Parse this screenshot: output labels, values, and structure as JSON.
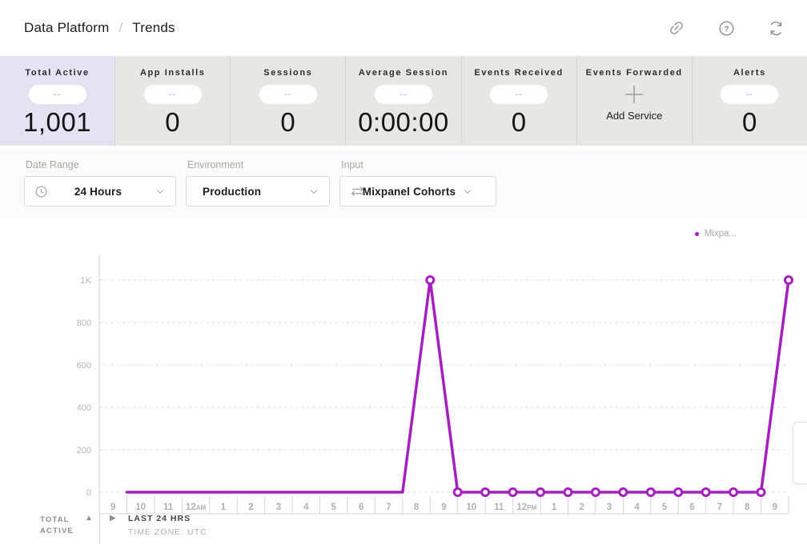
{
  "header": {
    "breadcrumb": {
      "section": "Data Platform",
      "separator": "/",
      "page": "Trends"
    },
    "help_glyph": "?",
    "icons": [
      "link-icon",
      "help-icon",
      "refresh-icon"
    ]
  },
  "metrics": {
    "cards": [
      {
        "label": "Total Active",
        "pill": "--",
        "value": "1,001",
        "selected": true
      },
      {
        "label": "App Installs",
        "pill": "--",
        "value": "0"
      },
      {
        "label": "Sessions",
        "pill": "--",
        "value": "0"
      },
      {
        "label": "Average Session",
        "pill": "--",
        "value": "0:00:00"
      },
      {
        "label": "Events Received",
        "pill": "--",
        "value": "0"
      },
      {
        "label": "Events Forwarded",
        "action": "Add Service",
        "icon": "plus-icon"
      },
      {
        "label": "Alerts",
        "pill": "--",
        "value": "0"
      }
    ]
  },
  "filters": {
    "date_range": {
      "label": "Date Range",
      "value": "24 Hours",
      "icon": "clock-icon"
    },
    "environment": {
      "label": "Environment",
      "value": "Production"
    },
    "input": {
      "label": "Input",
      "value": "Mixpanel Cohorts",
      "icon": "swap-arrows-icon"
    }
  },
  "chart_data": {
    "type": "line",
    "legend": [
      {
        "label": "Mixpa...",
        "color": "#a51fbf"
      }
    ],
    "x_labels": [
      "9",
      "10",
      "11",
      "12 AM",
      "1",
      "2",
      "3",
      "4",
      "5",
      "6",
      "7",
      "8",
      "9",
      "10",
      "11",
      "12 PM",
      "1",
      "2",
      "3",
      "4",
      "5",
      "6",
      "7",
      "8",
      "9"
    ],
    "values": [
      0,
      0,
      0,
      0,
      0,
      0,
      0,
      0,
      0,
      0,
      0,
      1000,
      0,
      0,
      0,
      0,
      0,
      0,
      0,
      0,
      0,
      0,
      0,
      0,
      1000
    ],
    "marker_start_index": 11,
    "y_ticks": [
      "1K",
      "800",
      "600",
      "400",
      "200",
      "0"
    ],
    "y_tick_values": [
      1000,
      800,
      600,
      400,
      200,
      0
    ],
    "ylim": [
      0,
      1000
    ],
    "line_color": "#a51fbf",
    "grid": "dashed horizontal"
  },
  "chart_footer": {
    "metric_line1": "TOTAL",
    "metric_line2": "ACTIVE",
    "range_label": "LAST 24 HRS",
    "timezone": "TIME ZONE: UTC"
  }
}
